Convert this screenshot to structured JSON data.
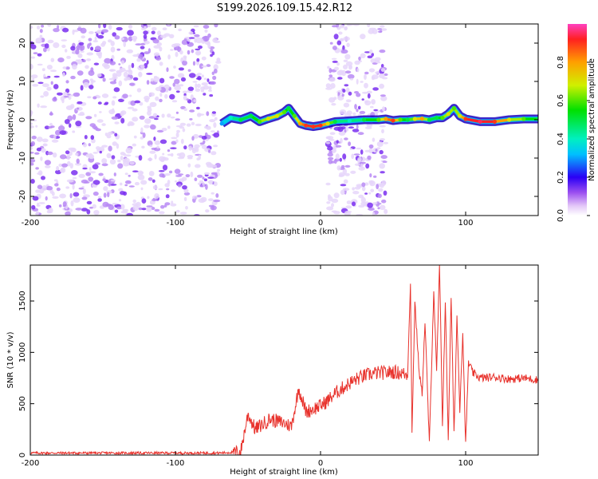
{
  "title": "S199.2026.109.15.42.R12",
  "chart_data": [
    {
      "type": "heatmap",
      "xlabel": "Height of straight line (km)",
      "ylabel": "Frequency (Hz)",
      "xlim": [
        -200,
        150
      ],
      "ylim": [
        -25,
        25
      ],
      "xticks": [
        -200,
        -100,
        0,
        100
      ],
      "yticks": [
        -20,
        -10,
        0,
        10,
        20
      ],
      "noise_regions": [
        {
          "from": -200,
          "to": -70,
          "density": "dense"
        },
        {
          "from": 5,
          "to": 45,
          "density": "moderate"
        }
      ],
      "ridge": {
        "x": [
          -68,
          -62,
          -55,
          -48,
          -42,
          -36,
          -30,
          -25,
          -22,
          -18,
          -14,
          -10,
          -5,
          0,
          5,
          10,
          20,
          30,
          40,
          45,
          50,
          55,
          60,
          65,
          70,
          75,
          80,
          84,
          88,
          92,
          96,
          100,
          110,
          120,
          130,
          140,
          150
        ],
        "y": [
          -1.0,
          0.5,
          0.0,
          1.0,
          -0.5,
          0.3,
          1.0,
          2.0,
          3.0,
          1.0,
          -1.0,
          -1.5,
          -1.8,
          -1.5,
          -1.0,
          -0.5,
          -0.3,
          0.0,
          0.0,
          0.2,
          -0.2,
          0.0,
          0.0,
          0.2,
          0.3,
          0.0,
          0.5,
          0.5,
          1.5,
          3.0,
          1.0,
          0.2,
          -0.5,
          -0.5,
          0.0,
          0.2,
          0.2
        ],
        "amplitude": [
          0.3,
          0.4,
          0.5,
          0.5,
          0.6,
          0.7,
          0.7,
          0.6,
          0.5,
          0.6,
          0.8,
          0.9,
          0.9,
          0.9,
          0.7,
          0.5,
          0.4,
          0.5,
          0.6,
          0.8,
          0.9,
          0.6,
          0.5,
          0.7,
          0.8,
          0.5,
          0.5,
          0.6,
          0.7,
          0.6,
          0.7,
          0.9,
          0.95,
          0.9,
          0.7,
          0.6,
          0.5
        ]
      },
      "colorbar": {
        "label": "Normalized spectral amplitude",
        "range": [
          0,
          1
        ],
        "ticks": [
          0.0,
          0.2,
          0.4,
          0.6,
          0.8
        ],
        "tick_labels": [
          "0.0",
          "0.2",
          "0.4",
          "0.6",
          "0.8"
        ]
      }
    },
    {
      "type": "line",
      "xlabel": "Height of straight line (km)",
      "ylabel": "SNR (10 * v/v)",
      "xlim": [
        -200,
        150
      ],
      "ylim": [
        0,
        1850
      ],
      "xticks": [
        -200,
        -100,
        0,
        100
      ],
      "yticks": [
        0,
        500,
        1000,
        1500
      ],
      "color": "#e8322c",
      "series": [
        {
          "name": "SNR",
          "x": [
            -200,
            -150,
            -100,
            -70,
            -55,
            -50,
            -45,
            -40,
            -35,
            -30,
            -25,
            -20,
            -15,
            -10,
            -5,
            0,
            5,
            10,
            15,
            20,
            25,
            30,
            35,
            40,
            45,
            50,
            55,
            60,
            62,
            63,
            65,
            68,
            70,
            72,
            75,
            78,
            80,
            82,
            84,
            86,
            88,
            90,
            92,
            94,
            96,
            98,
            100,
            102,
            105,
            110,
            120,
            130,
            140,
            150
          ],
          "y": [
            20,
            20,
            20,
            20,
            30,
            400,
            250,
            300,
            350,
            330,
            310,
            280,
            650,
            420,
            450,
            480,
            530,
            600,
            650,
            700,
            740,
            770,
            790,
            800,
            800,
            810,
            800,
            780,
            1700,
            200,
            1500,
            800,
            600,
            1300,
            100,
            1600,
            800,
            1850,
            300,
            1500,
            150,
            1550,
            200,
            1350,
            450,
            1200,
            100,
            900,
            800,
            750,
            760,
            740,
            750,
            730
          ]
        }
      ]
    }
  ]
}
